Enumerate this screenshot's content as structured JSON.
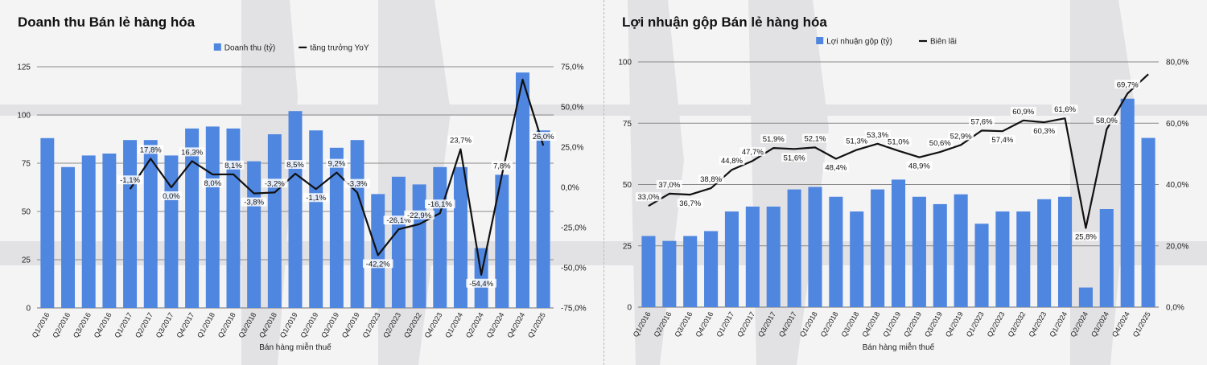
{
  "colors": {
    "bar": "#4f86e0",
    "line": "#111111",
    "grid": "#8a8a8a",
    "background": "#f4f4f5"
  },
  "chart_data": [
    {
      "type": "bar",
      "title": "Doanh thu Bán lẻ hàng hóa",
      "xlabel": "Bán hàng miễn thuế",
      "categories": [
        "Q1/2016",
        "Q2/2016",
        "Q3/2016",
        "Q4/2016",
        "Q1/2017",
        "Q2/2017",
        "Q3/2017",
        "Q4/2017",
        "Q1/2018",
        "Q2/2018",
        "Q3/2018",
        "Q4/2018",
        "Q1/2019",
        "Q2/2019",
        "Q3/2019",
        "Q4/2019",
        "Q1/2023",
        "Q2/2023",
        "Q3/2032",
        "Q4/2023",
        "Q1/2024",
        "Q2/2024",
        "Q3/2024",
        "Q4/2024",
        "Q1/2025"
      ],
      "series": [
        {
          "name": "Doanh thu (tỷ)",
          "type": "bar",
          "axis": "left",
          "values": [
            88,
            73,
            79,
            80,
            87,
            87,
            79,
            93,
            94,
            93,
            76,
            90,
            102,
            92,
            83,
            87,
            59,
            68,
            64,
            73,
            73,
            31,
            69,
            122,
            92
          ]
        },
        {
          "name": "tăng trưởng YoY",
          "type": "line",
          "axis": "right",
          "values": [
            null,
            null,
            null,
            null,
            -1.1,
            17.8,
            0.0,
            16.3,
            8.0,
            8.1,
            -3.8,
            -3.2,
            8.5,
            -1.1,
            9.2,
            -3.3,
            -42.2,
            -26.1,
            -22.9,
            -16.1,
            23.7,
            -54.4,
            7.8,
            67.0,
            26.0
          ],
          "labels": [
            "",
            "",
            "",
            "",
            "-1,1%",
            "17,8%",
            "0,0%",
            "16,3%",
            "8,0%",
            "8,1%",
            "-3,8%",
            "-3,2%",
            "8,5%",
            "-1,1%",
            "9,2%",
            "-3,3%",
            "-42,2%",
            "-26,1%",
            "-22,9%",
            "-16,1%",
            "23,7%",
            "-54,4%",
            "7,8%",
            "",
            "26,0%"
          ]
        }
      ],
      "left_axis": {
        "ylim": [
          0,
          125
        ],
        "ticks": [
          0,
          25,
          50,
          75,
          100,
          125
        ],
        "tick_labels": [
          "0",
          "25",
          "50",
          "75",
          "100",
          "125"
        ]
      },
      "right_axis": {
        "ylim": [
          -75,
          75
        ],
        "ticks": [
          -75,
          -50,
          -25,
          0,
          25,
          50,
          75
        ],
        "tick_labels": [
          "-75,0%",
          "-50,0%",
          "-25,0%",
          "0,0%",
          "25,0%",
          "50,0%",
          "75,0%"
        ]
      },
      "legend_position": "top-center",
      "grid": true
    },
    {
      "type": "bar",
      "title": "Lợi nhuận gộp Bán lẻ hàng hóa",
      "xlabel": "Bán hàng miễn thuế",
      "categories": [
        "Q1/2016",
        "Q2/2016",
        "Q3/2016",
        "Q4/2016",
        "Q1/2017",
        "Q2/2017",
        "Q3/2017",
        "Q4/2017",
        "Q1/2018",
        "Q2/2018",
        "Q3/2018",
        "Q4/2018",
        "Q1/2019",
        "Q2/2019",
        "Q3/2019",
        "Q4/2019",
        "Q1/2023",
        "Q2/2023",
        "Q3/2032",
        "Q4/2023",
        "Q1/2024",
        "Q2/2024",
        "Q3/2024",
        "Q4/2024",
        "Q1/2025"
      ],
      "series": [
        {
          "name": "Lợi nhuận gộp (tỷ)",
          "type": "bar",
          "axis": "left",
          "values": [
            29,
            27,
            29,
            31,
            39,
            41,
            41,
            48,
            49,
            45,
            39,
            48,
            52,
            45,
            42,
            46,
            34,
            39,
            39,
            44,
            45,
            8,
            40,
            85,
            69
          ]
        },
        {
          "name": "Biên lãi",
          "type": "line",
          "axis": "right",
          "values": [
            33.0,
            37.0,
            36.7,
            38.8,
            44.8,
            47.7,
            51.9,
            51.6,
            52.1,
            48.4,
            51.3,
            53.3,
            51.0,
            48.9,
            50.6,
            52.9,
            57.6,
            57.4,
            60.9,
            60.3,
            61.6,
            25.8,
            58.0,
            69.7,
            76.0
          ],
          "labels": [
            "33,0%",
            "37,0%",
            "36,7%",
            "38,8%",
            "44,8%",
            "47,7%",
            "51,9%",
            "51,6%",
            "52,1%",
            "48,4%",
            "51,3%",
            "53,3%",
            "51,0%",
            "48,9%",
            "50,6%",
            "52,9%",
            "57,6%",
            "57,4%",
            "60,9%",
            "60,3%",
            "61,6%",
            "25,8%",
            "58,0%",
            "69,7%",
            ""
          ]
        }
      ],
      "left_axis": {
        "ylim": [
          0,
          100
        ],
        "ticks": [
          0,
          25,
          50,
          75,
          100
        ],
        "tick_labels": [
          "0",
          "25",
          "50",
          "75",
          "100"
        ]
      },
      "right_axis": {
        "ylim": [
          0,
          80
        ],
        "ticks": [
          0,
          20,
          40,
          60,
          80
        ],
        "tick_labels": [
          "0,0%",
          "20,0%",
          "40,0%",
          "60,0%",
          "80,0%"
        ]
      },
      "legend_position": "top-center",
      "grid": true
    }
  ]
}
